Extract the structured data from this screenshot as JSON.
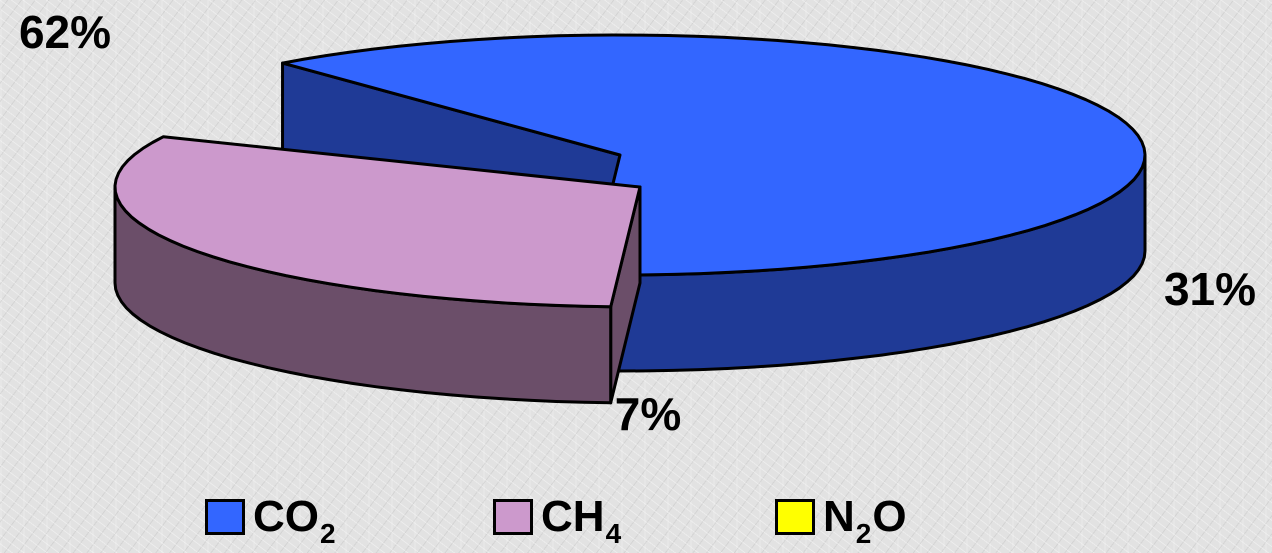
{
  "chart_data": {
    "type": "pie",
    "style": "3d-exploded",
    "categories": [
      "CO2",
      "CH4",
      "N2O"
    ],
    "values": [
      62,
      31,
      7
    ],
    "data_labels": [
      "62%",
      "31%",
      "7%"
    ],
    "colors": [
      "#3366ff",
      "#cc99cc",
      "#ffff00"
    ],
    "side_colors": [
      "#1f3a96",
      "#6b4e69",
      "#808000"
    ],
    "legend": [
      {
        "base": "CO",
        "sub": "2",
        "tail": "",
        "color": "#3366ff"
      },
      {
        "base": "CH",
        "sub": "4",
        "tail": "",
        "color": "#cc99cc"
      },
      {
        "base": "N",
        "sub": "2",
        "tail": "O",
        "color": "#ffff00"
      }
    ],
    "legend_placement": "bottom"
  }
}
